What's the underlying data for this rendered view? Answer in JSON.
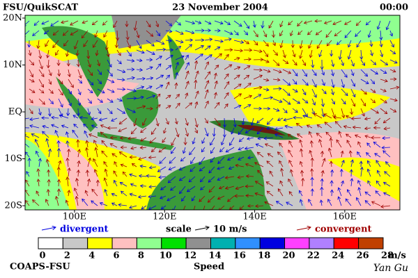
{
  "header": {
    "left": "FSU/QuikSCAT",
    "center": "23 November 2004",
    "right": "00:00"
  },
  "map": {
    "lat_labels": [
      "20N",
      "10N",
      "EQ",
      "10S",
      "20S"
    ],
    "lon_labels": [
      "100E",
      "120E",
      "140E",
      "160E"
    ]
  },
  "legend": {
    "divergent": "divergent",
    "scale": "scale",
    "scale_value": "10 m/s",
    "convergent": "convergent",
    "divergent_color": "#0000e0",
    "convergent_color": "#a00000"
  },
  "colorbar": {
    "label": "Speed",
    "unit": "m/s",
    "ticks": [
      0,
      2,
      4,
      6,
      8,
      10,
      12,
      14,
      16,
      18,
      20,
      22,
      24,
      26,
      28
    ],
    "colors": [
      "#ffffff",
      "#c8c8c8",
      "#ffff00",
      "#ffc0c0",
      "#90ff90",
      "#00e000",
      "#909090",
      "#00b0b0",
      "#3090ff",
      "#0000e0",
      "#ff40ff",
      "#b080ff",
      "#ff0000",
      "#c04000",
      "#000000"
    ]
  },
  "footer": {
    "left": "COAPS-FSU",
    "right": "Yan Gu"
  }
}
